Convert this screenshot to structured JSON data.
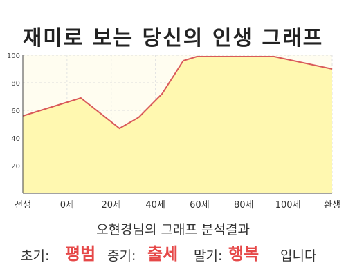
{
  "title": "재미로 보는 당신의 인생 그래프",
  "chart_data": {
    "type": "area",
    "x_tick_labels": [
      "전생",
      "0세",
      "20세",
      "40세",
      "60세",
      "80세",
      "100세",
      "환생"
    ],
    "y_ticks": [
      20,
      40,
      60,
      80,
      100
    ],
    "ylim": [
      0,
      100
    ],
    "points": [
      {
        "x": -30,
        "y": 56
      },
      {
        "x": 0,
        "y": 69
      },
      {
        "x": 20,
        "y": 47
      },
      {
        "x": 30,
        "y": 55
      },
      {
        "x": 42,
        "y": 72
      },
      {
        "x": 53,
        "y": 96
      },
      {
        "x": 60,
        "y": 99
      },
      {
        "x": 100,
        "y": 99
      },
      {
        "x": 130,
        "y": 90
      }
    ],
    "grid": true,
    "legend": "none"
  },
  "colors": {
    "line": "#d95a5a",
    "fill": "#fff8b0",
    "plot_bg": "#fffdf0",
    "highlight": "#e64848"
  },
  "result": {
    "heading": "오현경님의 그래프 분석결과",
    "early_label": "초기:",
    "early_value": "평범",
    "mid_label": "중기:",
    "mid_value": "출세",
    "late_label": "말기:",
    "late_value": "행복",
    "suffix": "입니다"
  }
}
